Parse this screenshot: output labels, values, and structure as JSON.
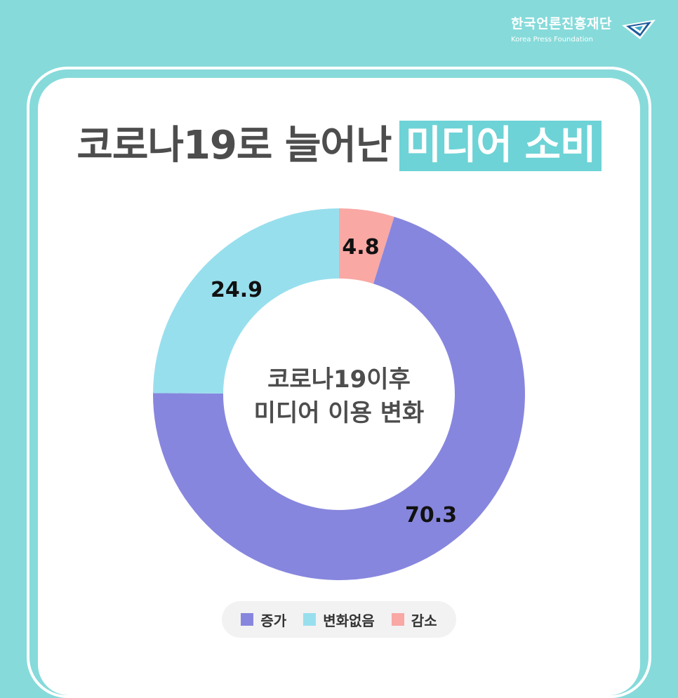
{
  "brand": {
    "name_ko": "한국언론진흥재단",
    "name_en": "Korea Press Foundation"
  },
  "title": {
    "main": "코로나19로 늘어난",
    "highlight": "미디어 소비"
  },
  "chart_center": {
    "line1": "코로나19이후",
    "line2": "미디어 이용 변화"
  },
  "chart_data": {
    "type": "pie",
    "categories": [
      "증가",
      "변화없음",
      "감소"
    ],
    "values": [
      70.3,
      24.9,
      4.8
    ],
    "colors": [
      "#8786de",
      "#98dfee",
      "#f9a8a4"
    ],
    "legend": "bottom",
    "title": ""
  },
  "colors": {
    "background": "#86dada",
    "highlight": "#6dd3d6"
  }
}
